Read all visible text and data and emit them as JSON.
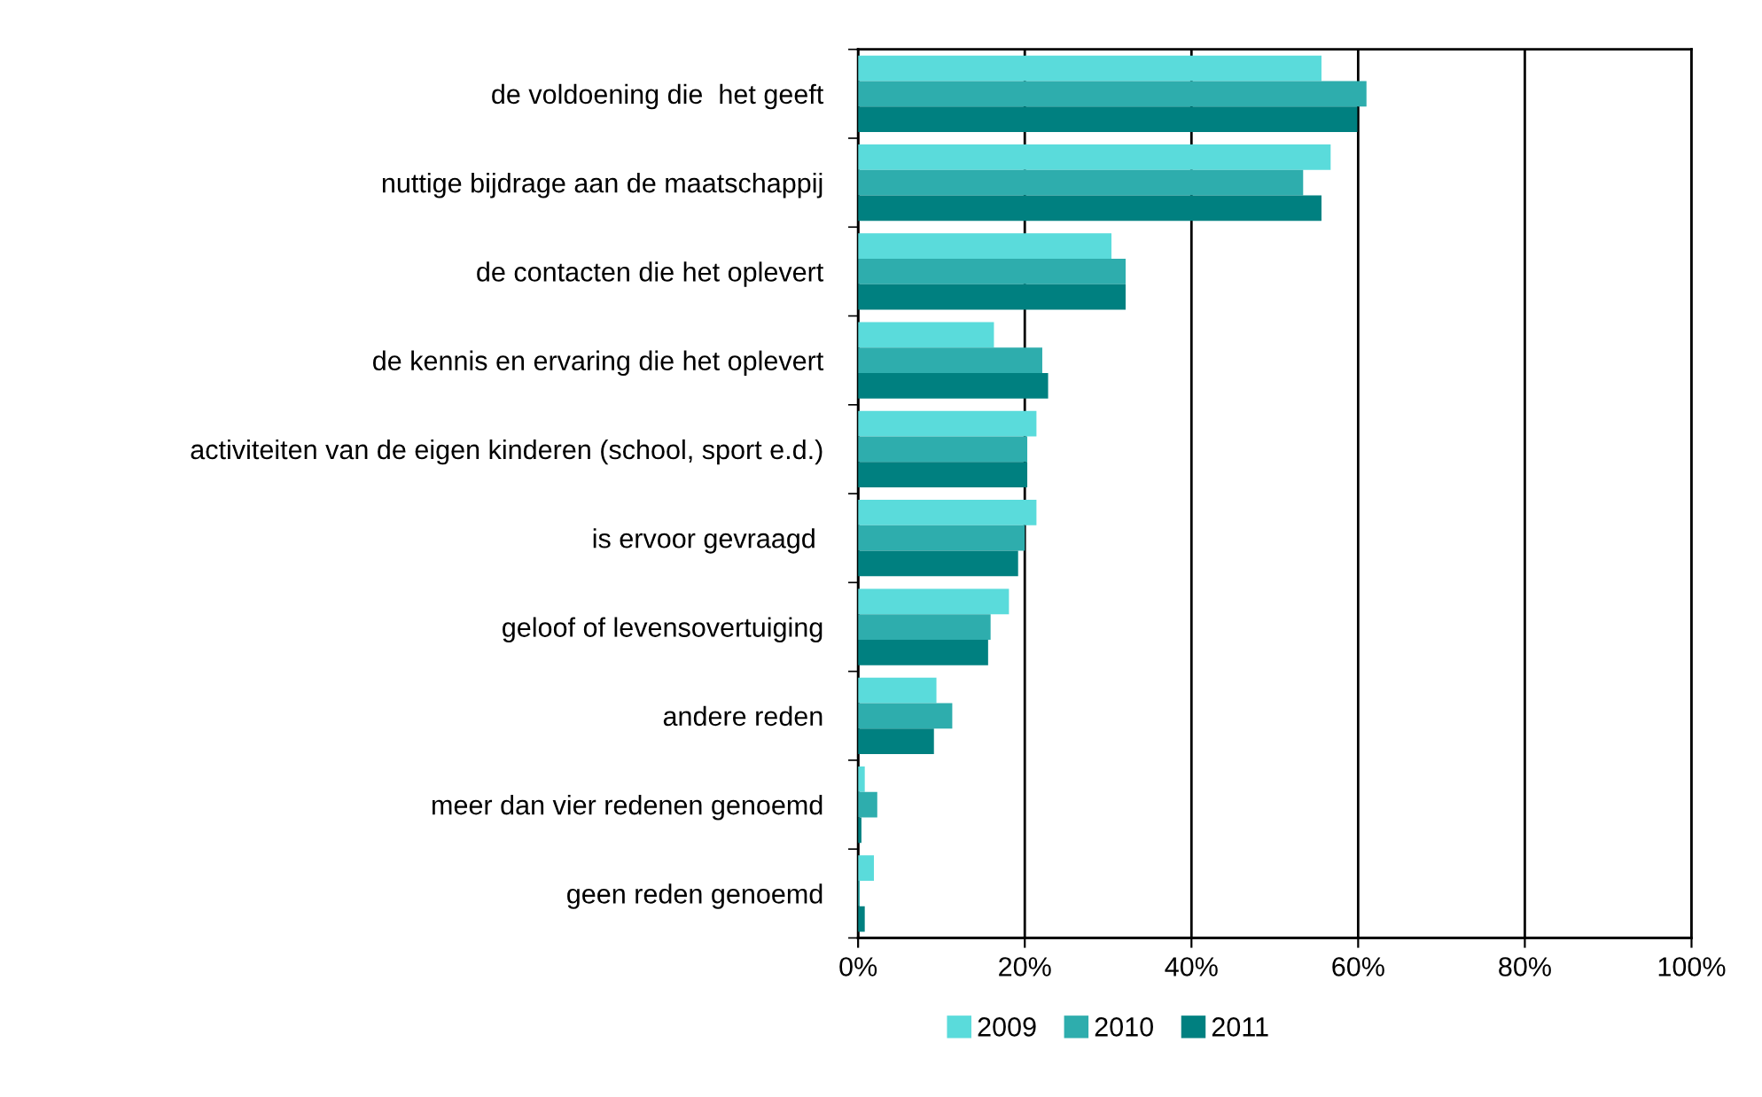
{
  "chart_data": {
    "type": "bar",
    "orientation": "horizontal",
    "categories": [
      "de voldoening die  het geeft",
      "nuttige bijdrage aan de maatschappij",
      "de contacten die het oplevert",
      "de kennis en ervaring die het oplevert",
      "activiteiten van de eigen kinderen (school, sport e.d.)",
      "is ervoor gevraagd ",
      "geloof of levensovertuiging",
      "andere reden",
      "meer dan vier redenen genoemd",
      "geen reden genoemd"
    ],
    "series": [
      {
        "name": "2009",
        "color": "#5adbdb",
        "values": [
          55.6,
          56.7,
          30.4,
          16.3,
          21.4,
          21.4,
          18.1,
          9.4,
          0.8,
          1.9
        ]
      },
      {
        "name": "2010",
        "color": "#2eadad",
        "values": [
          61,
          53.4,
          32.1,
          22.1,
          20.3,
          20,
          15.9,
          11.3,
          2.3,
          0.2
        ]
      },
      {
        "name": "2011",
        "color": "#008080",
        "values": [
          59.9,
          55.6,
          32.1,
          22.8,
          20.3,
          19.2,
          15.6,
          9.1,
          0.4,
          0.8
        ]
      }
    ],
    "xlim": [
      0,
      100
    ],
    "xticks": [
      {
        "value": 0,
        "label": "0%"
      },
      {
        "value": 20,
        "label": "20%"
      },
      {
        "value": 40,
        "label": "40%"
      },
      {
        "value": 60,
        "label": "60%"
      },
      {
        "value": 80,
        "label": "80%"
      },
      {
        "value": 100,
        "label": "100%"
      }
    ],
    "grid": "x",
    "legend": "bottom"
  }
}
